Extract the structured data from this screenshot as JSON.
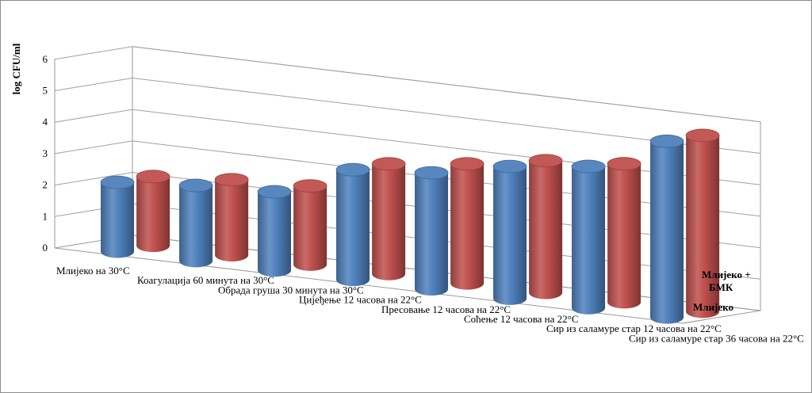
{
  "chart_data": {
    "type": "bar",
    "style": "3d-cylinder",
    "title": "",
    "ylabel": "log CFU/ml",
    "xlabel": "",
    "ylim": [
      0,
      6
    ],
    "y_ticks": [
      "0",
      "1",
      "2",
      "3",
      "4",
      "5",
      "6"
    ],
    "grid": true,
    "categories": [
      "Млијеко на 30°C",
      "Коагулација 60 минута на 30°C",
      "Обрада груша 30 минута на 30°C",
      "Цијеђење 12 часова на 22°C",
      "Пресовање 12 часова на 22°C",
      "Соћење 12 часова на 22°C",
      "Сир из саламуре стар 12 часова на 22°C",
      "Сир из саламуре стар 36 часова на 22°C"
    ],
    "series": [
      {
        "name": "Млијеко",
        "color": "#4f81bd",
        "values": [
          2.2,
          2.4,
          2.5,
          3.5,
          3.7,
          4.2,
          4.5,
          5.6
        ]
      },
      {
        "name": "Млијеко + БМК",
        "color": "#c0504d",
        "values": [
          2.2,
          2.4,
          2.5,
          3.5,
          3.8,
          4.2,
          4.4,
          5.6
        ]
      }
    ]
  }
}
